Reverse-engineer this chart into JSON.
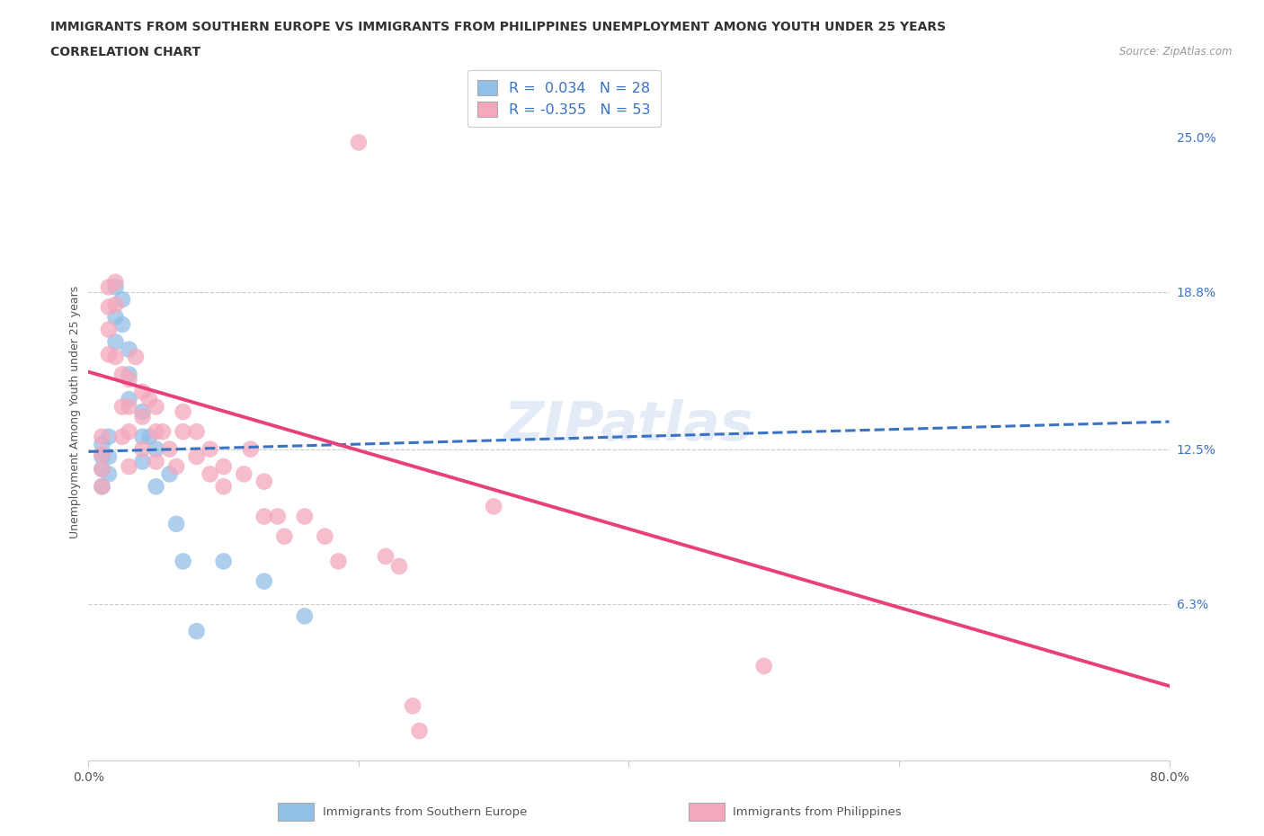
{
  "title_line1": "IMMIGRANTS FROM SOUTHERN EUROPE VS IMMIGRANTS FROM PHILIPPINES UNEMPLOYMENT AMONG YOUTH UNDER 25 YEARS",
  "title_line2": "CORRELATION CHART",
  "source": "Source: ZipAtlas.com",
  "ylabel": "Unemployment Among Youth under 25 years",
  "xlim": [
    0.0,
    0.8
  ],
  "ylim": [
    0.0,
    0.28
  ],
  "ytick_labels_right": [
    "25.0%",
    "18.8%",
    "12.5%",
    "6.3%"
  ],
  "yticks_right": [
    0.25,
    0.188,
    0.125,
    0.063
  ],
  "grid_yticks": [
    0.188,
    0.125,
    0.063
  ],
  "watermark": "ZIPatlas",
  "blue_R": 0.034,
  "blue_N": 28,
  "pink_R": -0.355,
  "pink_N": 53,
  "blue_color": "#92c0e8",
  "pink_color": "#f4a8bc",
  "blue_line_color": "#3a72c4",
  "pink_line_color": "#e8407a",
  "background_color": "#ffffff",
  "grid_color": "#cccccc",
  "blue_scatter_x": [
    0.01,
    0.01,
    0.01,
    0.01,
    0.015,
    0.015,
    0.015,
    0.02,
    0.02,
    0.02,
    0.025,
    0.025,
    0.03,
    0.03,
    0.03,
    0.04,
    0.04,
    0.04,
    0.045,
    0.05,
    0.05,
    0.06,
    0.065,
    0.07,
    0.08,
    0.1,
    0.13,
    0.16
  ],
  "blue_scatter_y": [
    0.127,
    0.122,
    0.117,
    0.11,
    0.13,
    0.122,
    0.115,
    0.19,
    0.178,
    0.168,
    0.185,
    0.175,
    0.165,
    0.155,
    0.145,
    0.14,
    0.13,
    0.12,
    0.13,
    0.125,
    0.11,
    0.115,
    0.095,
    0.08,
    0.052,
    0.08,
    0.072,
    0.058
  ],
  "pink_scatter_x": [
    0.01,
    0.01,
    0.01,
    0.01,
    0.015,
    0.015,
    0.015,
    0.015,
    0.02,
    0.02,
    0.02,
    0.025,
    0.025,
    0.025,
    0.03,
    0.03,
    0.03,
    0.03,
    0.035,
    0.04,
    0.04,
    0.04,
    0.045,
    0.05,
    0.05,
    0.05,
    0.055,
    0.06,
    0.065,
    0.07,
    0.07,
    0.08,
    0.08,
    0.09,
    0.09,
    0.1,
    0.1,
    0.115,
    0.12,
    0.13,
    0.13,
    0.14,
    0.145,
    0.16,
    0.175,
    0.185,
    0.2,
    0.22,
    0.23,
    0.24,
    0.245,
    0.3,
    0.5
  ],
  "pink_scatter_y": [
    0.13,
    0.123,
    0.117,
    0.11,
    0.19,
    0.182,
    0.173,
    0.163,
    0.192,
    0.183,
    0.162,
    0.155,
    0.142,
    0.13,
    0.153,
    0.142,
    0.132,
    0.118,
    0.162,
    0.148,
    0.138,
    0.125,
    0.145,
    0.142,
    0.132,
    0.12,
    0.132,
    0.125,
    0.118,
    0.14,
    0.132,
    0.132,
    0.122,
    0.125,
    0.115,
    0.118,
    0.11,
    0.115,
    0.125,
    0.112,
    0.098,
    0.098,
    0.09,
    0.098,
    0.09,
    0.08,
    0.248,
    0.082,
    0.078,
    0.022,
    0.012,
    0.102,
    0.038
  ],
  "blue_trendline_x": [
    0.0,
    0.8
  ],
  "blue_trendline_y": [
    0.124,
    0.136
  ],
  "pink_trendline_x": [
    0.0,
    0.8
  ],
  "pink_trendline_y": [
    0.156,
    0.03
  ]
}
